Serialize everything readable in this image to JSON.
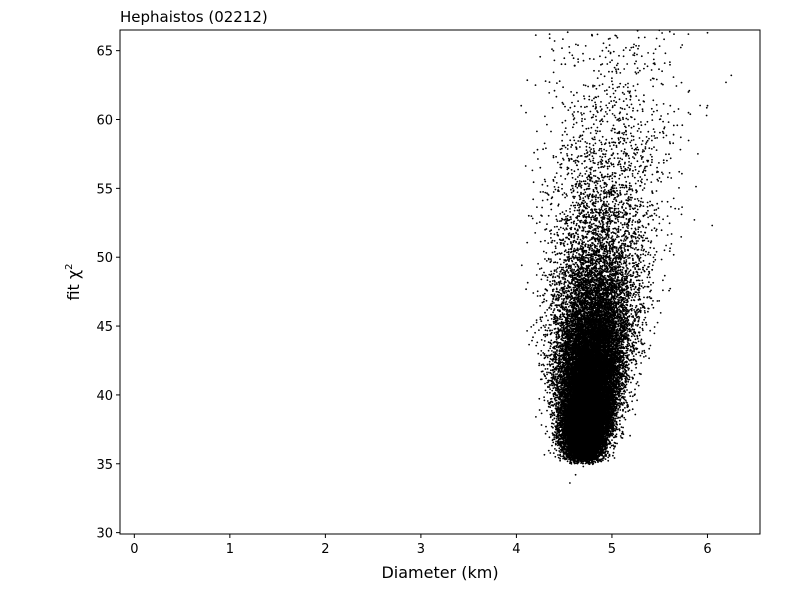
{
  "chart_data": {
    "type": "scatter",
    "title": "Hephaistos (02212)",
    "xlabel": "Diameter (km)",
    "ylabel_base": "fit χ",
    "ylabel_sup": "2",
    "xlim": [
      -0.15,
      6.55
    ],
    "ylim": [
      29.9,
      66.5
    ],
    "xticks": [
      0,
      1,
      2,
      3,
      4,
      5,
      6
    ],
    "yticks": [
      30,
      35,
      40,
      45,
      50,
      55,
      60,
      65
    ],
    "grid": false,
    "legend": "none",
    "marker_color": "#000000",
    "series": [
      {
        "distribution": {
          "count": 30000,
          "x_center": 4.85,
          "x_spread": 0.18,
          "x_min": 4.05,
          "x_max": 6.25,
          "y_min": 33.3,
          "y_max": 66.5,
          "y_mode": 40.5,
          "core_x_range": [
            4.5,
            5.3
          ],
          "core_y_range": [
            35,
            52
          ]
        },
        "sample_points": [
          [
            4.56,
            33.6
          ],
          [
            4.62,
            34.2
          ],
          [
            4.7,
            34.8
          ],
          [
            4.8,
            35.1
          ],
          [
            4.9,
            35.6
          ],
          [
            4.5,
            37.0
          ],
          [
            4.6,
            38.5
          ],
          [
            4.75,
            39.0
          ],
          [
            4.85,
            40.0
          ],
          [
            5.0,
            40.5
          ],
          [
            5.15,
            41.0
          ],
          [
            5.25,
            42.5
          ],
          [
            4.45,
            43.0
          ],
          [
            4.55,
            44.0
          ],
          [
            4.9,
            45.0
          ],
          [
            5.3,
            46.0
          ],
          [
            5.4,
            47.5
          ],
          [
            4.35,
            48.0
          ],
          [
            4.7,
            50.0
          ],
          [
            5.2,
            51.0
          ],
          [
            5.55,
            50.5
          ],
          [
            4.3,
            52.0
          ],
          [
            4.8,
            53.0
          ],
          [
            5.1,
            54.0
          ],
          [
            5.7,
            53.5
          ],
          [
            4.25,
            56.5
          ],
          [
            4.9,
            57.0
          ],
          [
            5.35,
            58.0
          ],
          [
            5.9,
            57.5
          ],
          [
            4.6,
            60.0
          ],
          [
            5.15,
            61.5
          ],
          [
            4.05,
            61.0
          ],
          [
            4.1,
            60.5
          ],
          [
            4.2,
            62.5
          ],
          [
            5.0,
            63.0
          ],
          [
            5.8,
            62.0
          ],
          [
            6.0,
            61.0
          ],
          [
            6.05,
            52.3
          ],
          [
            6.25,
            63.2
          ],
          [
            4.4,
            65.7
          ],
          [
            4.9,
            65.0
          ],
          [
            5.45,
            64.0
          ],
          [
            5.8,
            66.2
          ],
          [
            6.0,
            66.3
          ],
          [
            5.65,
            66.2
          ]
        ]
      }
    ]
  }
}
